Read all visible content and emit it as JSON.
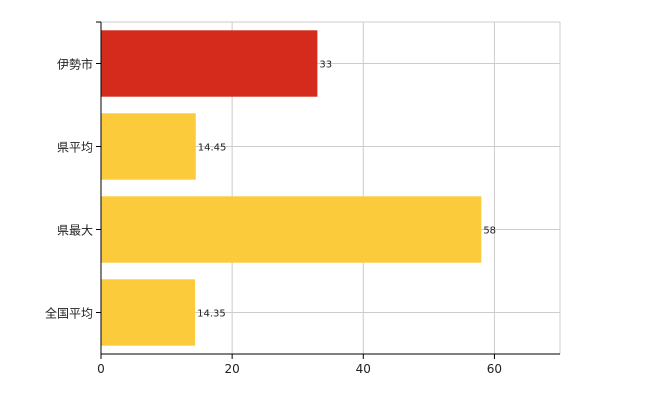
{
  "chart_data": {
    "type": "bar",
    "orientation": "horizontal",
    "categories": [
      "伊勢市",
      "県平均",
      "県最大",
      "全国平均"
    ],
    "values": [
      33,
      14.45,
      58,
      14.35
    ],
    "value_labels": [
      "33",
      "14.45",
      "58",
      "14.35"
    ],
    "bar_colors": [
      "#d42b1c",
      "#fccb3c",
      "#fccb3c",
      "#fccb3c"
    ],
    "xlim": [
      0,
      70
    ],
    "xticks": [
      0,
      20,
      40,
      60
    ],
    "xtick_labels": [
      "0",
      "20",
      "40",
      "60"
    ],
    "grid": true,
    "title": "",
    "xlabel": "",
    "ylabel": ""
  }
}
